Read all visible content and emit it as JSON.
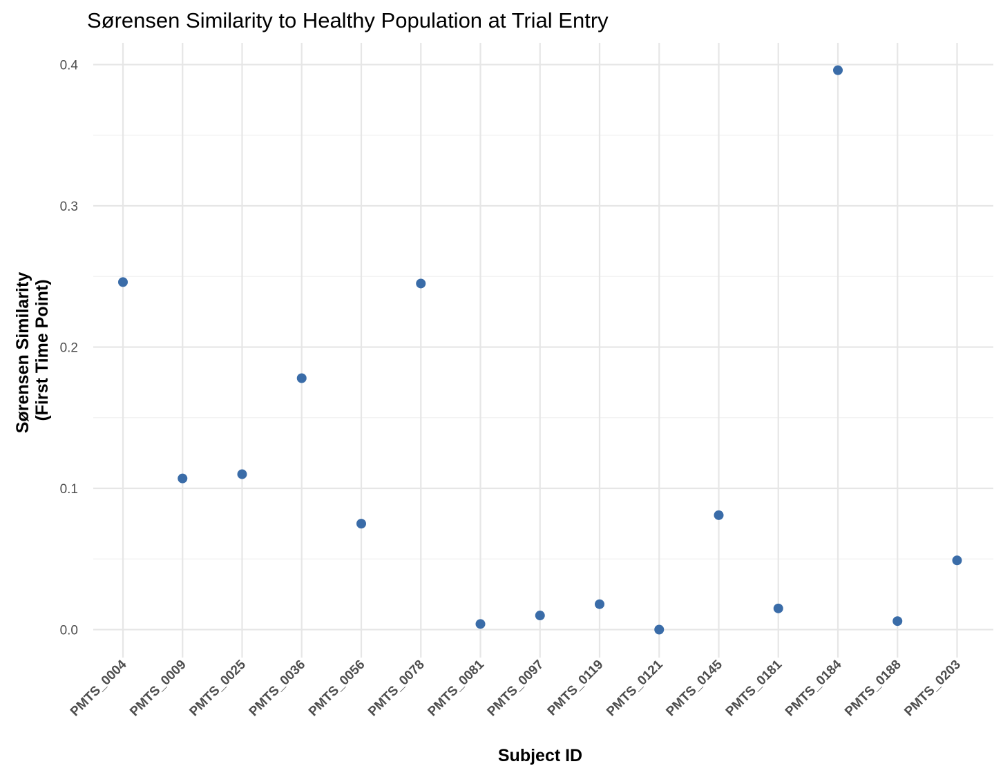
{
  "chart_data": {
    "type": "scatter",
    "title": "Sørensen Similarity to Healthy Population at Trial Entry",
    "xlabel": "Subject ID",
    "ylabel_lines": [
      "Sørensen Similarity",
      "(First Time Point)"
    ],
    "categories": [
      "PMTS_0004",
      "PMTS_0009",
      "PMTS_0025",
      "PMTS_0036",
      "PMTS_0056",
      "PMTS_0078",
      "PMTS_0081",
      "PMTS_0097",
      "PMTS_0119",
      "PMTS_0121",
      "PMTS_0145",
      "PMTS_0181",
      "PMTS_0184",
      "PMTS_0188",
      "PMTS_0203"
    ],
    "values": [
      0.246,
      0.107,
      0.11,
      0.178,
      0.075,
      0.245,
      0.004,
      0.01,
      0.018,
      0.0,
      0.081,
      0.015,
      0.396,
      0.006,
      0.049
    ],
    "y_ticks": [
      "0.0",
      "0.1",
      "0.2",
      "0.3",
      "0.4"
    ],
    "ylim": [
      -0.0185,
      0.4155
    ],
    "grid": true,
    "legend": "none",
    "point_color": "#3A6CA8"
  }
}
